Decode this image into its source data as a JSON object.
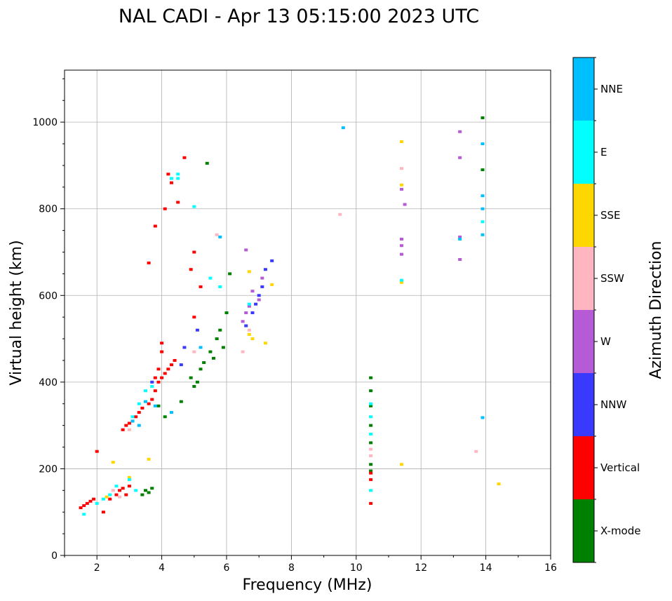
{
  "chart_data": {
    "type": "scatter",
    "title": "NAL CADI - Apr 13 05:15:00 2023 UTC",
    "xlabel": "Frequency (MHz)",
    "ylabel": "Virtual height (km)",
    "xlim": [
      1,
      16
    ],
    "ylim": [
      0,
      1120
    ],
    "xticks": [
      2,
      4,
      6,
      8,
      10,
      12,
      14,
      16
    ],
    "yticks": [
      0,
      200,
      400,
      600,
      800,
      1000
    ],
    "grid": true,
    "colorbar": {
      "title": "Azimuth Direction",
      "categories": [
        {
          "name": "X-mode",
          "color": "#008000"
        },
        {
          "name": "Vertical",
          "color": "#ff0000"
        },
        {
          "name": "NNW",
          "color": "#3a3aff"
        },
        {
          "name": "W",
          "color": "#b65bd6"
        },
        {
          "name": "SSW",
          "color": "#ffb6c1"
        },
        {
          "name": "SSE",
          "color": "#ffd700"
        },
        {
          "name": "E",
          "color": "#00ffff"
        },
        {
          "name": "NNE",
          "color": "#00bfff"
        }
      ]
    },
    "series": [
      {
        "name": "X-mode",
        "points": [
          [
            3.5,
            150
          ],
          [
            3.7,
            155
          ],
          [
            3.6,
            145
          ],
          [
            3.4,
            140
          ],
          [
            3.9,
            345
          ],
          [
            4.1,
            320
          ],
          [
            4.6,
            355
          ],
          [
            4.9,
            410
          ],
          [
            5.0,
            390
          ],
          [
            5.1,
            400
          ],
          [
            5.2,
            430
          ],
          [
            5.3,
            445
          ],
          [
            5.5,
            470
          ],
          [
            5.7,
            500
          ],
          [
            5.8,
            520
          ],
          [
            5.9,
            480
          ],
          [
            5.6,
            455
          ],
          [
            5.4,
            905
          ],
          [
            6.0,
            560
          ],
          [
            6.1,
            650
          ],
          [
            10.45,
            410
          ],
          [
            10.45,
            380
          ],
          [
            10.45,
            345
          ],
          [
            10.45,
            300
          ],
          [
            10.45,
            260
          ],
          [
            10.45,
            210
          ],
          [
            10.45,
            195
          ],
          [
            13.9,
            1010
          ],
          [
            13.9,
            890
          ]
        ]
      },
      {
        "name": "Vertical",
        "points": [
          [
            1.5,
            110
          ],
          [
            1.6,
            115
          ],
          [
            1.7,
            120
          ],
          [
            1.8,
            125
          ],
          [
            1.9,
            130
          ],
          [
            2.2,
            100
          ],
          [
            2.4,
            130
          ],
          [
            2.6,
            140
          ],
          [
            2.7,
            150
          ],
          [
            2.8,
            155
          ],
          [
            2.9,
            140
          ],
          [
            3.0,
            160
          ],
          [
            2.8,
            290
          ],
          [
            2.9,
            300
          ],
          [
            3.0,
            305
          ],
          [
            3.1,
            310
          ],
          [
            3.2,
            320
          ],
          [
            3.3,
            330
          ],
          [
            3.4,
            340
          ],
          [
            3.6,
            350
          ],
          [
            3.7,
            360
          ],
          [
            3.8,
            380
          ],
          [
            3.9,
            400
          ],
          [
            4.0,
            410
          ],
          [
            4.1,
            420
          ],
          [
            4.2,
            430
          ],
          [
            4.3,
            440
          ],
          [
            4.4,
            450
          ],
          [
            4.0,
            470
          ],
          [
            3.9,
            430
          ],
          [
            3.8,
            410
          ],
          [
            4.0,
            490
          ],
          [
            3.6,
            675
          ],
          [
            3.8,
            760
          ],
          [
            4.1,
            800
          ],
          [
            4.3,
            860
          ],
          [
            4.5,
            815
          ],
          [
            4.7,
            918
          ],
          [
            4.2,
            880
          ],
          [
            4.9,
            660
          ],
          [
            5.0,
            700
          ],
          [
            5.2,
            620
          ],
          [
            5.0,
            550
          ],
          [
            2.0,
            240
          ],
          [
            10.45,
            120
          ],
          [
            10.45,
            175
          ],
          [
            10.45,
            190
          ]
        ]
      },
      {
        "name": "NNW",
        "points": [
          [
            3.7,
            400
          ],
          [
            4.6,
            440
          ],
          [
            4.7,
            480
          ],
          [
            5.1,
            520
          ],
          [
            6.6,
            530
          ],
          [
            6.8,
            560
          ],
          [
            7.0,
            600
          ],
          [
            7.1,
            620
          ],
          [
            7.2,
            660
          ],
          [
            7.4,
            680
          ],
          [
            6.9,
            580
          ]
        ]
      },
      {
        "name": "W",
        "points": [
          [
            6.5,
            540
          ],
          [
            6.6,
            560
          ],
          [
            6.7,
            575
          ],
          [
            6.8,
            610
          ],
          [
            7.0,
            590
          ],
          [
            7.1,
            640
          ],
          [
            6.6,
            705
          ],
          [
            11.4,
            730
          ],
          [
            11.4,
            715
          ],
          [
            11.4,
            695
          ],
          [
            11.4,
            845
          ],
          [
            11.5,
            810
          ],
          [
            13.2,
            978
          ],
          [
            13.2,
            918
          ],
          [
            13.2,
            735
          ],
          [
            13.2,
            683
          ]
        ]
      },
      {
        "name": "SSW",
        "points": [
          [
            2.5,
            150
          ],
          [
            2.7,
            135
          ],
          [
            3.0,
            290
          ],
          [
            5.0,
            470
          ],
          [
            5.7,
            740
          ],
          [
            6.5,
            470
          ],
          [
            6.7,
            520
          ],
          [
            9.5,
            787
          ],
          [
            10.45,
            245
          ],
          [
            10.45,
            230
          ],
          [
            11.4,
            893
          ],
          [
            13.7,
            240
          ]
        ]
      },
      {
        "name": "SSE",
        "points": [
          [
            2.3,
            135
          ],
          [
            2.5,
            215
          ],
          [
            3.6,
            222
          ],
          [
            6.7,
            510
          ],
          [
            6.8,
            500
          ],
          [
            7.2,
            490
          ],
          [
            7.4,
            625
          ],
          [
            6.7,
            655
          ],
          [
            11.4,
            955
          ],
          [
            11.4,
            855
          ],
          [
            11.4,
            630
          ],
          [
            11.4,
            210
          ],
          [
            14.4,
            165
          ],
          [
            3.0,
            180
          ]
        ]
      },
      {
        "name": "E",
        "points": [
          [
            1.6,
            95
          ],
          [
            2.0,
            120
          ],
          [
            2.2,
            130
          ],
          [
            2.4,
            140
          ],
          [
            2.6,
            160
          ],
          [
            3.0,
            175
          ],
          [
            3.2,
            150
          ],
          [
            3.1,
            320
          ],
          [
            3.3,
            350
          ],
          [
            3.5,
            380
          ],
          [
            3.7,
            390
          ],
          [
            4.5,
            870
          ],
          [
            4.5,
            880
          ],
          [
            4.3,
            870
          ],
          [
            5.0,
            805
          ],
          [
            5.5,
            640
          ],
          [
            5.8,
            620
          ],
          [
            6.7,
            580
          ],
          [
            10.45,
            350
          ],
          [
            10.45,
            320
          ],
          [
            10.45,
            280
          ],
          [
            10.45,
            150
          ],
          [
            11.4,
            635
          ],
          [
            13.9,
            770
          ]
        ]
      },
      {
        "name": "NNE",
        "points": [
          [
            3.1,
            310
          ],
          [
            3.3,
            300
          ],
          [
            3.5,
            355
          ],
          [
            3.8,
            345
          ],
          [
            4.3,
            330
          ],
          [
            5.2,
            480
          ],
          [
            5.8,
            735
          ],
          [
            9.6,
            987
          ],
          [
            13.9,
            950
          ],
          [
            13.9,
            830
          ],
          [
            13.9,
            800
          ],
          [
            13.9,
            740
          ],
          [
            13.9,
            318
          ],
          [
            13.2,
            730
          ]
        ]
      }
    ]
  }
}
